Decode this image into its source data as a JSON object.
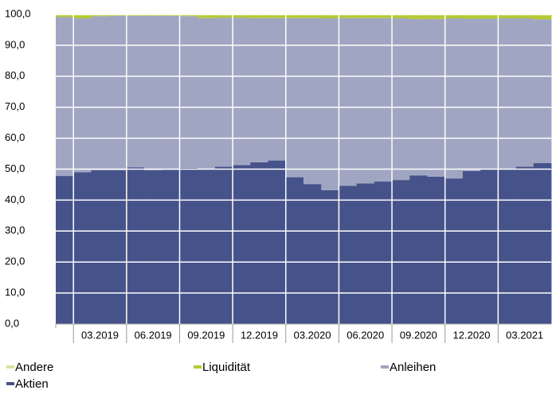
{
  "chart_data": {
    "type": "stacked_bar",
    "categories": [
      null,
      null,
      "03.2019",
      null,
      null,
      "06.2019",
      null,
      null,
      "09.2019",
      null,
      null,
      "12.2019",
      null,
      null,
      "03.2020",
      null,
      null,
      "06.2020",
      null,
      null,
      "09.2020",
      null,
      null,
      "12.2020",
      null,
      null,
      "03.2021",
      null
    ],
    "series": [
      {
        "name": "Andere",
        "color": "#d9e39a",
        "values": [
          0.3,
          0.3,
          0.3,
          0.3,
          0.3,
          0.3,
          0.3,
          0.3,
          0.3,
          0.3,
          0.3,
          0.3,
          0.3,
          0.3,
          0.3,
          0.3,
          0.3,
          0.3,
          0.3,
          0.3,
          0.3,
          0.3,
          0.3,
          0.3,
          0.3,
          0.3,
          0.3,
          0.3
        ]
      },
      {
        "name": "Liquidität",
        "color": "#b5c935",
        "values": [
          0.6,
          1.0,
          0.3,
          0.2,
          0.2,
          0.2,
          0.2,
          0.3,
          0.9,
          0.8,
          0.8,
          0.9,
          0.9,
          0.9,
          0.9,
          1.0,
          0.9,
          0.9,
          0.9,
          1.0,
          1.2,
          1.2,
          1.0,
          1.1,
          1.1,
          1.0,
          1.0,
          1.3
        ]
      },
      {
        "name": "Anleihen",
        "color": "#a0a6c2",
        "values": [
          51.3,
          49.7,
          49.7,
          49.8,
          48.9,
          49.8,
          49.7,
          49.0,
          48.8,
          48.1,
          47.6,
          46.6,
          46.0,
          51.4,
          53.6,
          55.5,
          54.2,
          53.4,
          52.8,
          52.2,
          50.5,
          50.9,
          51.7,
          49.2,
          48.6,
          48.7,
          47.9,
          46.4
        ]
      },
      {
        "name": "Aktien",
        "color": "#46538a",
        "values": [
          47.8,
          49.0,
          49.7,
          49.7,
          50.6,
          49.7,
          49.8,
          50.4,
          50.0,
          50.8,
          51.3,
          52.2,
          52.8,
          47.4,
          45.2,
          43.2,
          44.6,
          45.4,
          46.0,
          46.5,
          48.0,
          47.6,
          47.0,
          49.4,
          50.0,
          50.0,
          50.8,
          52.0
        ]
      }
    ],
    "ylim": [
      0,
      100
    ],
    "yticks": [
      {
        "value": 0,
        "label": "0,0"
      },
      {
        "value": 10,
        "label": "10,0"
      },
      {
        "value": 20,
        "label": "20,0"
      },
      {
        "value": 30,
        "label": "30,0"
      },
      {
        "value": 40,
        "label": "40,0"
      },
      {
        "value": 50,
        "label": "50,0"
      },
      {
        "value": 60,
        "label": "60,0"
      },
      {
        "value": 70,
        "label": "70,0"
      },
      {
        "value": 80,
        "label": "80,0"
      },
      {
        "value": 90,
        "label": "90,0"
      },
      {
        "value": 100,
        "label": "100,0"
      }
    ],
    "grid": true
  }
}
